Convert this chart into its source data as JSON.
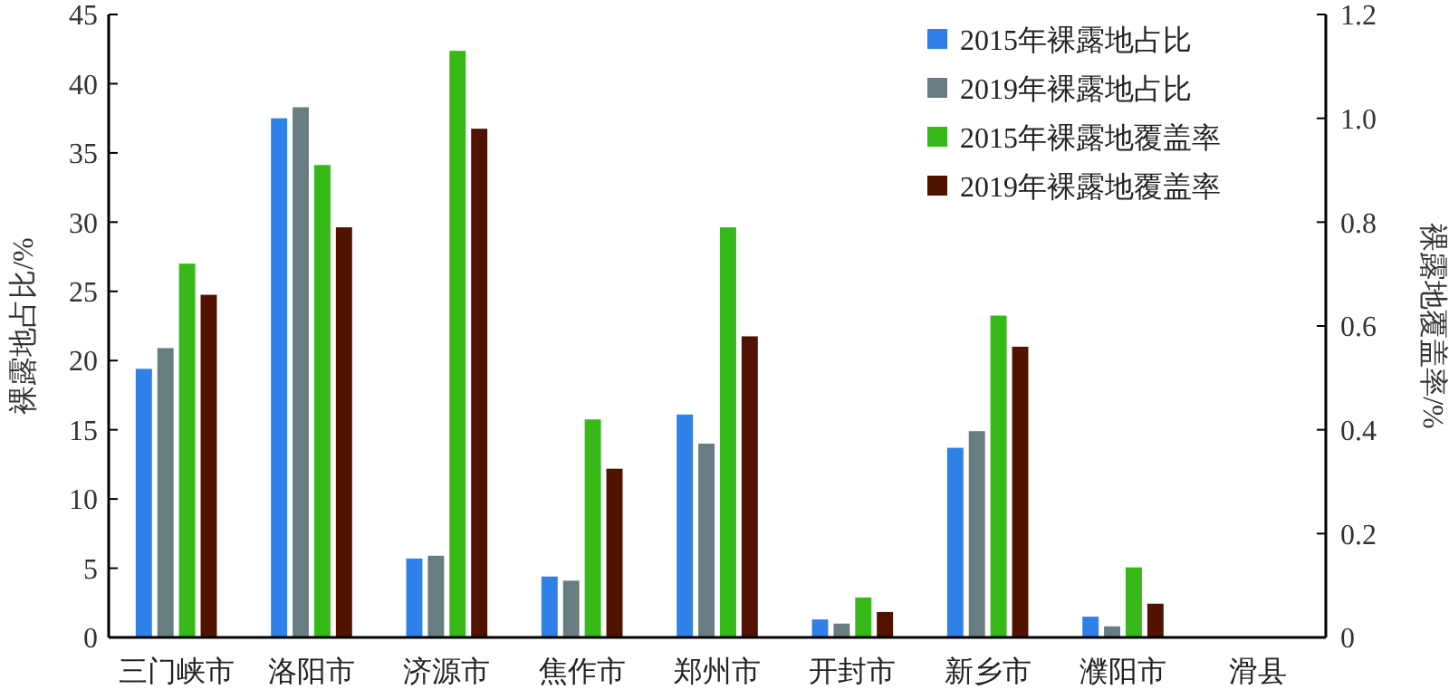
{
  "chart_data": {
    "type": "bar",
    "xlabel": null,
    "ylabel": "裸露地占比/%",
    "y2label": "裸露地覆盖率/%",
    "categories": [
      "三门峡市",
      "洛阳市",
      "济源市",
      "焦作市",
      "郑州市",
      "开封市",
      "新乡市",
      "濮阳市",
      "滑县"
    ],
    "series": [
      {
        "name": "2015年裸露地占比",
        "color": "#2f80e8",
        "values": [
          19.4,
          37.5,
          5.7,
          4.4,
          16.1,
          1.3,
          13.7,
          1.5,
          0
        ]
      },
      {
        "name": "2019年裸露地占比",
        "color": "#687d82",
        "values": [
          20.9,
          38.3,
          5.9,
          4.1,
          14.0,
          1.0,
          14.9,
          0.8,
          0
        ]
      },
      {
        "name": "2015年裸露地覆盖率",
        "color": "#36b818",
        "axis": "y2",
        "values": [
          0.72,
          0.91,
          1.13,
          0.42,
          0.79,
          0.077,
          0.62,
          0.135,
          0
        ]
      },
      {
        "name": "2019年裸露地覆盖率",
        "color": "#521200",
        "axis": "y2",
        "values": [
          0.66,
          0.79,
          0.98,
          0.325,
          0.58,
          0.049,
          0.56,
          0.065,
          0
        ]
      }
    ],
    "ylim": [
      0,
      45
    ],
    "yticks": [
      0,
      5,
      10,
      15,
      20,
      25,
      30,
      35,
      40,
      45
    ],
    "y2lim": [
      0,
      1.2
    ],
    "y2ticks": [
      0,
      {
        "value": 0.2,
        "label": "0.2"
      },
      {
        "value": 0.4,
        "label": "0.4"
      },
      {
        "value": 0.6,
        "label": "0.6"
      },
      {
        "value": 0.8,
        "label": "0.8"
      },
      {
        "value": 1,
        "label": "1.0"
      },
      {
        "value": 1.2,
        "label": "1.2"
      }
    ],
    "legend": "top right",
    "grid": false
  }
}
